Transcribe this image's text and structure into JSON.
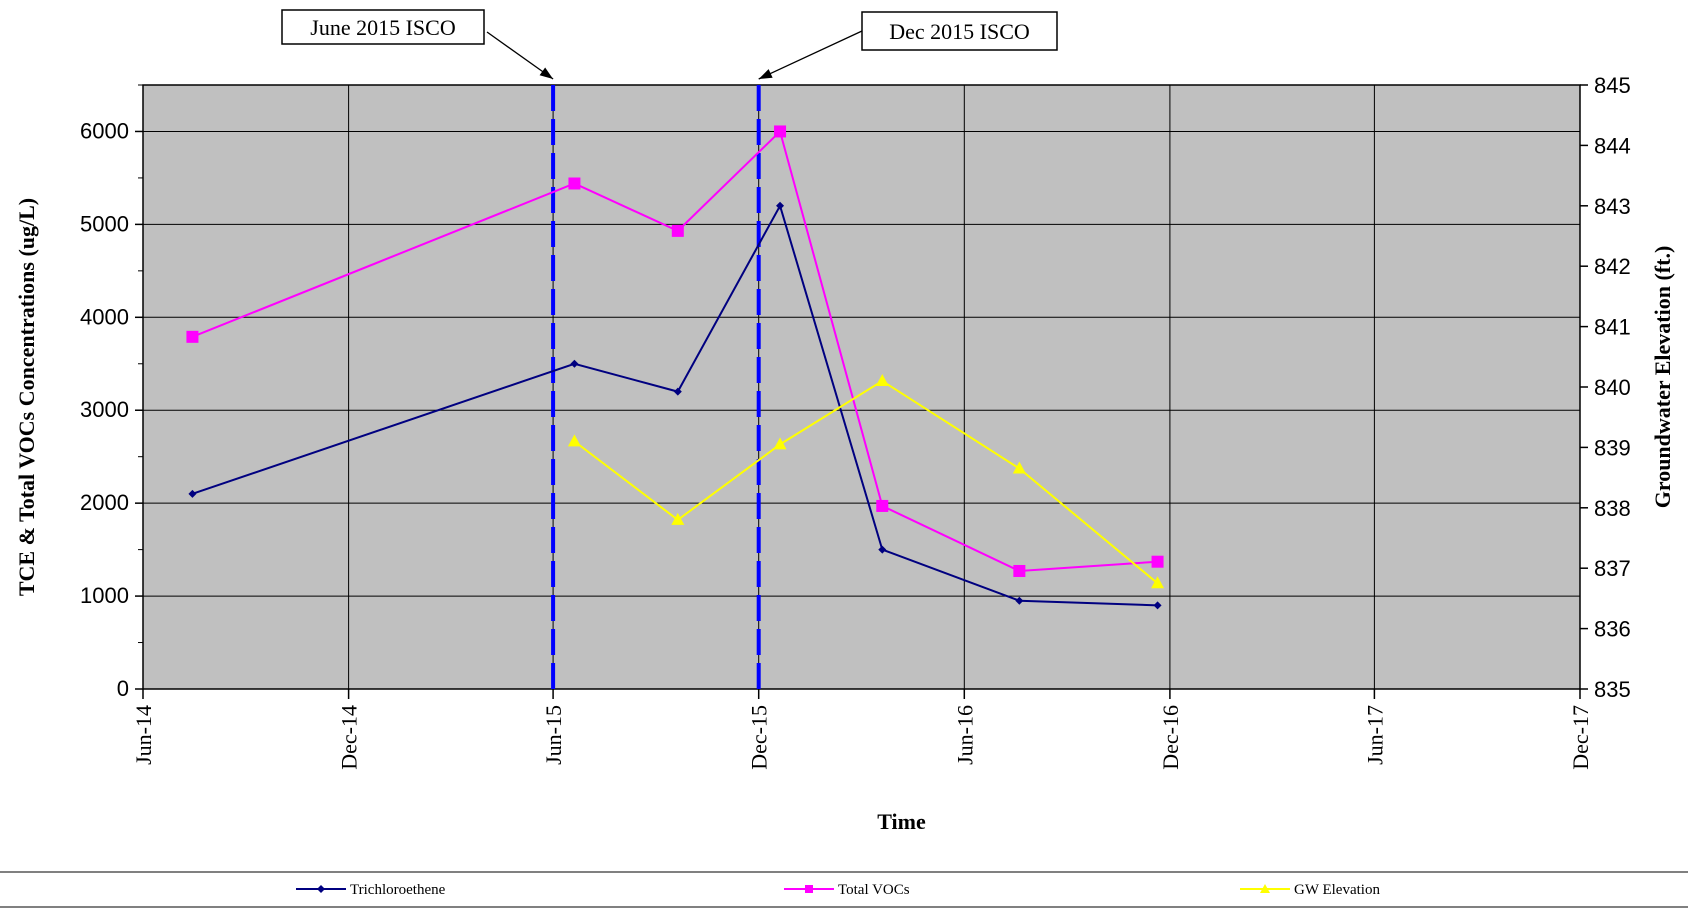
{
  "chart_data": {
    "type": "line",
    "x_axis": {
      "title": "Time",
      "tick_labels": [
        "Jun-14",
        "Dec-14",
        "Jun-15",
        "Dec-15",
        "Jun-16",
        "Dec-16",
        "Jun-17",
        "Dec-17"
      ],
      "tick_dates": [
        "2014-06-01",
        "2014-12-01",
        "2015-06-01",
        "2015-12-01",
        "2016-06-01",
        "2016-12-01",
        "2017-06-01",
        "2017-12-01"
      ],
      "range": [
        "2014-06-01",
        "2017-12-01"
      ]
    },
    "y_axis_left": {
      "title": "TCE & Total VOCs Concentrations (ug/L)",
      "range": [
        0,
        6500
      ],
      "tick_labels": [
        "0",
        "1000",
        "2000",
        "3000",
        "4000",
        "5000",
        "6000"
      ]
    },
    "y_axis_right": {
      "title": "Groundwater Elevation (ft.)",
      "range": [
        835,
        845
      ],
      "tick_labels": [
        "835",
        "836",
        "837",
        "838",
        "839",
        "840",
        "841",
        "842",
        "843",
        "844",
        "845"
      ]
    },
    "grid": true,
    "plot_background": "#c0c0c0",
    "series": [
      {
        "name": "Trichloroethene",
        "axis": "left",
        "color": "#000080",
        "marker": "diamond",
        "points": [
          {
            "x": "2014-07-15",
            "y": 2100
          },
          {
            "x": "2015-06-20",
            "y": 3500
          },
          {
            "x": "2015-09-20",
            "y": 3200
          },
          {
            "x": "2015-12-20",
            "y": 5200
          },
          {
            "x": "2016-03-20",
            "y": 1500
          },
          {
            "x": "2016-07-20",
            "y": 950
          },
          {
            "x": "2016-11-20",
            "y": 900
          }
        ]
      },
      {
        "name": "Total VOCs",
        "axis": "left",
        "color": "#ff00ff",
        "marker": "square",
        "points": [
          {
            "x": "2014-07-15",
            "y": 3790
          },
          {
            "x": "2015-06-20",
            "y": 5440
          },
          {
            "x": "2015-09-20",
            "y": 4930
          },
          {
            "x": "2015-12-20",
            "y": 6000
          },
          {
            "x": "2016-03-20",
            "y": 1970
          },
          {
            "x": "2016-07-20",
            "y": 1270
          },
          {
            "x": "2016-11-20",
            "y": 1370
          }
        ]
      },
      {
        "name": "GW Elevation",
        "axis": "right",
        "color": "#ffff00",
        "marker": "triangle",
        "points": [
          {
            "x": "2015-06-20",
            "y": 839.1
          },
          {
            "x": "2015-09-20",
            "y": 837.8
          },
          {
            "x": "2015-12-20",
            "y": 839.05
          },
          {
            "x": "2016-03-20",
            "y": 840.1
          },
          {
            "x": "2016-07-20",
            "y": 838.65
          },
          {
            "x": "2016-11-20",
            "y": 836.75
          }
        ]
      }
    ],
    "event_lines": [
      {
        "label": "June 2015 ISCO",
        "x": "2015-06-01",
        "color": "#0000ff"
      },
      {
        "label": "Dec 2015 ISCO",
        "x": "2015-12-01",
        "color": "#0000ff"
      }
    ],
    "legend_position": "bottom"
  }
}
